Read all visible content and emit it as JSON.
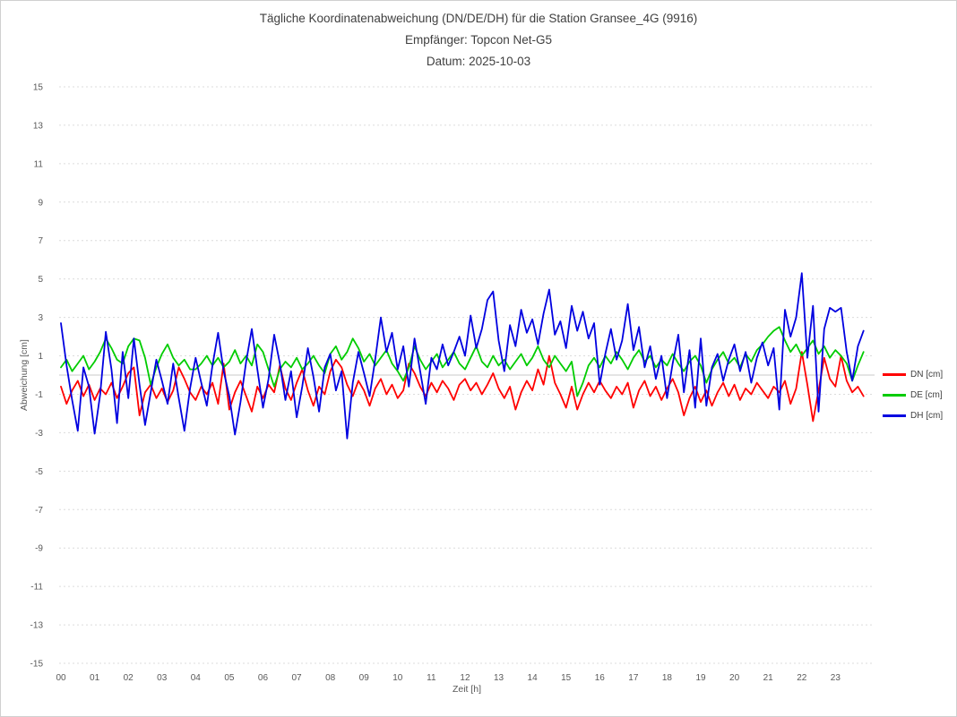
{
  "chart_data": {
    "type": "line",
    "title": "Tägliche Koordinatenabweichung (DN/DE/DH) für die Station Gransee_4G (9916)",
    "subtitle_receiver": "Empfänger: Topcon Net-G5",
    "subtitle_date": "Datum: 2025-10-03",
    "xlabel": "Zeit [h]",
    "ylabel": "Abweichung [cm]",
    "xlim": [
      0,
      24
    ],
    "ylim": [
      -15,
      15
    ],
    "x_ticks": [
      "00",
      "01",
      "02",
      "03",
      "04",
      "05",
      "06",
      "07",
      "08",
      "09",
      "10",
      "11",
      "12",
      "13",
      "14",
      "15",
      "16",
      "17",
      "18",
      "19",
      "20",
      "21",
      "22",
      "23"
    ],
    "y_ticks": [
      15,
      13,
      11,
      9,
      7,
      5,
      3,
      1,
      -1,
      -3,
      -5,
      -7,
      -9,
      -11,
      -13,
      -15
    ],
    "grid": "horizontal dashed lines at odd values, solid line at 0, no vertical gridlines",
    "legend_position": "right",
    "sample_interval_minutes": 10,
    "series": [
      {
        "name": "DN [cm]",
        "color": "#ff0000",
        "values": [
          -0.6,
          -1.5,
          -0.8,
          -0.3,
          -1.1,
          -0.5,
          -1.3,
          -0.7,
          -1.0,
          -0.4,
          -1.2,
          -0.6,
          0.1,
          0.4,
          -2.1,
          -0.9,
          -0.5,
          -1.2,
          -0.7,
          -1.4,
          -0.8,
          0.4,
          -0.2,
          -0.9,
          -1.3,
          -0.6,
          -1.0,
          -0.4,
          -1.5,
          0.6,
          -1.8,
          -0.9,
          -0.3,
          -1.1,
          -1.9,
          -0.6,
          -1.2,
          -0.5,
          -0.9,
          0.5,
          -0.7,
          -1.3,
          -0.4,
          0.3,
          -0.8,
          -1.6,
          -0.6,
          -1.0,
          0.2,
          0.8,
          0.4,
          -0.5,
          -1.1,
          -0.3,
          -0.8,
          -1.6,
          -0.7,
          -0.2,
          -1.0,
          -0.5,
          -1.2,
          -0.8,
          0.6,
          0.1,
          -0.6,
          -1.1,
          -0.4,
          -0.9,
          -0.3,
          -0.7,
          -1.3,
          -0.5,
          -0.2,
          -0.8,
          -0.4,
          -1.0,
          -0.5,
          0.1,
          -0.7,
          -1.2,
          -0.6,
          -1.8,
          -0.9,
          -0.3,
          -0.8,
          0.3,
          -0.5,
          1.0,
          -0.4,
          -1.0,
          -1.7,
          -0.6,
          -1.8,
          -1.0,
          -0.4,
          -0.9,
          -0.3,
          -0.8,
          -1.2,
          -0.6,
          -1.0,
          -0.4,
          -1.7,
          -0.8,
          -0.3,
          -1.1,
          -0.6,
          -1.3,
          -0.7,
          -0.2,
          -0.9,
          -2.1,
          -1.2,
          -0.6,
          -1.4,
          -0.8,
          -1.6,
          -0.9,
          -0.4,
          -1.1,
          -0.5,
          -1.3,
          -0.7,
          -1.0,
          -0.4,
          -0.8,
          -1.2,
          -0.6,
          -0.9,
          -0.3,
          -1.5,
          -0.7,
          1.2,
          -0.5,
          -2.4,
          -0.8,
          0.9,
          -0.2,
          -0.6,
          1.0,
          -0.3,
          -0.9,
          -0.6,
          -1.1
        ]
      },
      {
        "name": "DE [cm]",
        "color": "#00cc00",
        "values": [
          0.4,
          0.8,
          0.2,
          0.6,
          1.0,
          0.3,
          0.7,
          1.2,
          1.9,
          1.4,
          0.8,
          0.6,
          1.5,
          1.9,
          1.8,
          0.9,
          -0.5,
          0.4,
          1.1,
          1.6,
          0.9,
          0.5,
          0.8,
          0.3,
          0.3,
          0.6,
          1.0,
          0.5,
          0.9,
          0.4,
          0.7,
          1.3,
          0.6,
          1.0,
          0.5,
          1.6,
          1.2,
          0.3,
          -0.6,
          0.3,
          0.7,
          0.4,
          0.9,
          0.3,
          0.6,
          1.0,
          0.5,
          0.1,
          1.1,
          1.5,
          0.8,
          1.2,
          1.9,
          1.4,
          0.7,
          1.1,
          0.5,
          0.9,
          1.3,
          0.6,
          0.2,
          -0.3,
          0.4,
          1.5,
          0.8,
          0.3,
          0.7,
          1.1,
          0.4,
          0.8,
          1.2,
          0.6,
          0.3,
          0.9,
          1.5,
          0.7,
          0.4,
          1.0,
          0.5,
          0.8,
          0.3,
          0.7,
          1.1,
          0.5,
          0.9,
          1.5,
          0.8,
          0.4,
          1.0,
          0.6,
          0.2,
          0.7,
          -1.1,
          -0.4,
          0.5,
          0.9,
          0.4,
          1.0,
          0.6,
          1.2,
          0.8,
          0.3,
          0.9,
          1.3,
          0.7,
          1.0,
          0.4,
          0.8,
          0.5,
          1.1,
          0.6,
          0.2,
          0.7,
          1.0,
          0.5,
          -0.4,
          0.3,
          0.8,
          1.2,
          0.6,
          0.9,
          0.4,
          1.1,
          0.7,
          1.3,
          1.6,
          2.0,
          2.3,
          2.5,
          1.8,
          1.2,
          1.6,
          1.0,
          1.4,
          1.8,
          1.1,
          1.5,
          0.9,
          1.3,
          1.0,
          0.6,
          -0.3,
          0.5,
          1.2
        ]
      },
      {
        "name": "DH [cm]",
        "color": "#0000e0",
        "values": [
          2.7,
          0.5,
          -1.3,
          -2.9,
          0.4,
          -0.6,
          -3.05,
          -1.0,
          2.25,
          0.3,
          -2.5,
          1.2,
          -1.2,
          1.9,
          -0.5,
          -2.6,
          -0.9,
          0.8,
          -0.3,
          -1.5,
          0.6,
          -1.2,
          -2.9,
          -0.7,
          0.9,
          -0.4,
          -1.6,
          0.5,
          2.2,
          0.2,
          -1.1,
          -3.1,
          -1.4,
          0.7,
          2.4,
          0.3,
          -1.7,
          -0.2,
          2.1,
          0.6,
          -1.3,
          0.2,
          -2.2,
          -0.6,
          1.4,
          -0.1,
          -1.9,
          0.4,
          1.1,
          -0.8,
          0.2,
          -3.3,
          -0.4,
          1.2,
          0.1,
          -1.1,
          0.8,
          3.0,
          1.2,
          2.2,
          0.3,
          1.5,
          -0.6,
          1.9,
          0.2,
          -1.5,
          0.9,
          0.3,
          1.6,
          0.5,
          1.2,
          2.0,
          1.0,
          3.1,
          1.4,
          2.4,
          3.9,
          4.35,
          1.8,
          0.2,
          2.6,
          1.5,
          3.4,
          2.2,
          2.9,
          1.6,
          3.2,
          4.45,
          2.1,
          2.8,
          1.4,
          3.6,
          2.3,
          3.3,
          1.9,
          2.7,
          -0.5,
          1.1,
          2.4,
          0.8,
          1.8,
          3.7,
          1.3,
          2.5,
          0.4,
          1.5,
          -0.2,
          1.0,
          -1.2,
          0.6,
          2.1,
          -0.9,
          1.3,
          -1.7,
          1.9,
          -1.6,
          0.4,
          1.1,
          -0.3,
          0.8,
          1.6,
          0.2,
          1.2,
          -0.4,
          0.9,
          1.7,
          0.5,
          1.4,
          -1.8,
          3.4,
          2.0,
          3.0,
          5.3,
          0.9,
          3.6,
          -1.9,
          2.4,
          3.5,
          3.3,
          3.5,
          1.2,
          -0.3,
          1.5,
          2.3
        ]
      }
    ],
    "style": {
      "grid_color": "#dcdcdc",
      "zero_line_color": "#c8c8c8",
      "tick_label_color": "#595959",
      "title_color": "#404040",
      "background": "#ffffff"
    }
  }
}
